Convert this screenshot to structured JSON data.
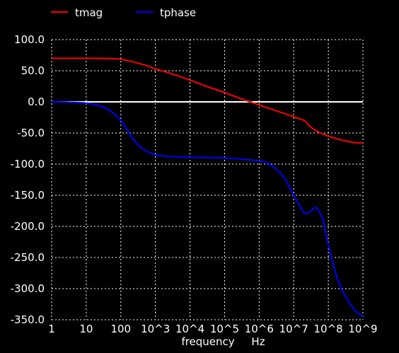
{
  "chart_data": {
    "type": "line",
    "x_scale": "log",
    "xlim": [
      1,
      1000000000
    ],
    "ylim": [
      -350,
      100
    ],
    "xlabel": "frequency",
    "xunit": "Hz",
    "grid": true,
    "legend": "top-left",
    "x_ticks": [
      "1",
      "10",
      "100",
      "10^3",
      "10^4",
      "10^5",
      "10^6",
      "10^7",
      "10^8",
      "10^9"
    ],
    "y_ticks": [
      "100.0",
      "50.0",
      "0.0",
      "-50.0",
      "-100.0",
      "-150.0",
      "-200.0",
      "-250.0",
      "-300.0",
      "-350.0"
    ],
    "colors": {
      "background": "#000000",
      "grid": "#ffffff",
      "zero_line": "#ffffff"
    },
    "series": [
      {
        "name": "tmag",
        "color": "#ff0000",
        "x": [
          1,
          3,
          10,
          30,
          60,
          100,
          200,
          500,
          1000,
          3000,
          10000,
          30000,
          100000,
          300000,
          1000000,
          3000000,
          10000000,
          20000000,
          30000000,
          50000000,
          100000000,
          200000000,
          500000000,
          1000000000
        ],
        "values": [
          70,
          70,
          70,
          69.9,
          69.5,
          68.5,
          65,
          59,
          53,
          45,
          35,
          25,
          15,
          5,
          -5,
          -14,
          -24,
          -30,
          -40,
          -48,
          -55,
          -60,
          -65,
          -66
        ]
      },
      {
        "name": "tphase",
        "color": "#0000ff",
        "x": [
          1,
          3,
          10,
          30,
          60,
          100,
          200,
          300,
          500,
          1000,
          3000,
          10000,
          100000,
          300000,
          1000000,
          2000000,
          5000000,
          10000000,
          20000000,
          30000000,
          40000000,
          50000000,
          70000000,
          100000000,
          200000000,
          500000000,
          1000000000
        ],
        "values": [
          0,
          -0.5,
          -2,
          -8,
          -18,
          -30,
          -55,
          -68,
          -78,
          -85,
          -88,
          -89,
          -90,
          -92,
          -95,
          -100,
          -120,
          -150,
          -178,
          -176,
          -170,
          -173,
          -190,
          -230,
          -290,
          -330,
          -345
        ]
      }
    ]
  }
}
